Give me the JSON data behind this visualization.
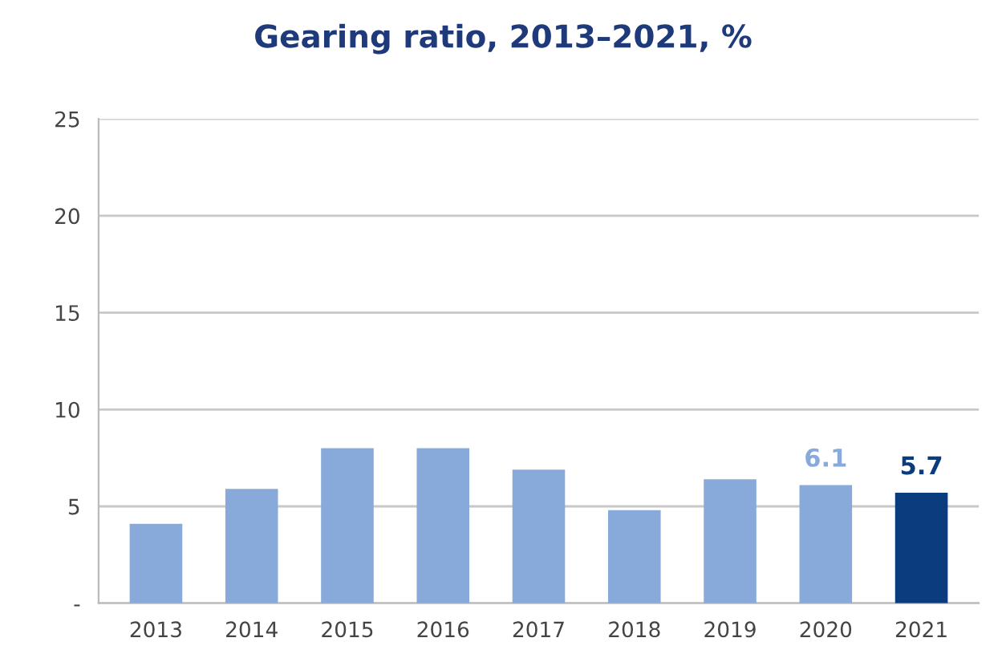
{
  "chart_data": {
    "type": "bar",
    "title": "Gearing ratio, 2013–2021, %",
    "categories": [
      "2013",
      "2014",
      "2015",
      "2016",
      "2017",
      "2018",
      "2019",
      "2020",
      "2021"
    ],
    "values": [
      4.1,
      5.9,
      8.0,
      8.0,
      6.9,
      4.8,
      6.4,
      6.1,
      5.7
    ],
    "colors": [
      "#88aadb",
      "#88aadb",
      "#88aadb",
      "#88aadb",
      "#88aadb",
      "#88aadb",
      "#88aadb",
      "#88aadb",
      "#0b3c7d"
    ],
    "value_labels": [
      null,
      null,
      null,
      null,
      null,
      null,
      null,
      "6.1",
      "5.7"
    ],
    "ylim": [
      0,
      25
    ],
    "yticks": [
      {
        "value": 0,
        "label": "-"
      },
      5,
      10,
      15,
      20,
      25
    ],
    "grid": "y"
  }
}
